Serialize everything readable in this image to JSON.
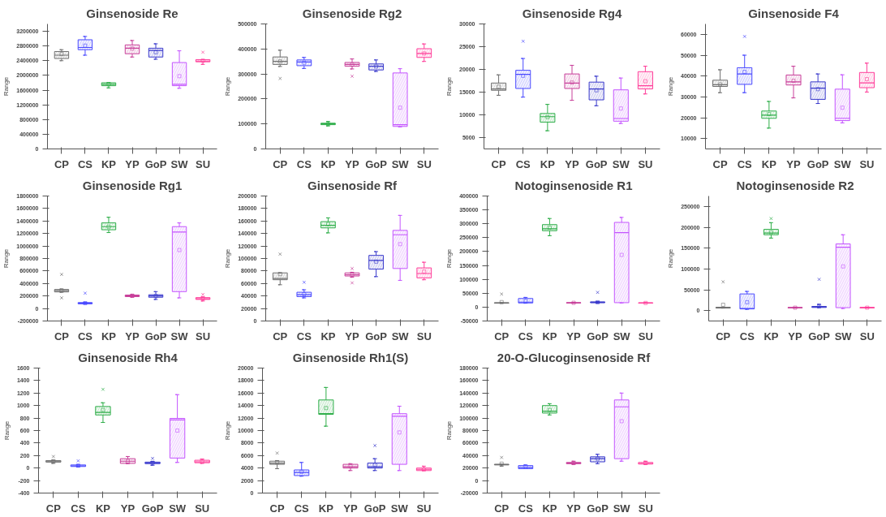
{
  "chart_data": [
    {
      "type": "box",
      "title": "Ginsenoside Re",
      "ylabel": "Range",
      "categories": [
        "CP",
        "CS",
        "KP",
        "YP",
        "GoP",
        "SW",
        "SU"
      ],
      "colors": [
        "#707070",
        "#4a4aff",
        "#2fae4a",
        "#c8409a",
        "#3a3acc",
        "#c455ff",
        "#ff3f9a"
      ],
      "ylim": [
        0,
        3400000
      ],
      "yticks": [
        0,
        400000,
        800000,
        1200000,
        1600000,
        2000000,
        2400000,
        2800000,
        3200000
      ],
      "boxes": [
        {
          "low": 2400000,
          "q1": 2460000,
          "median": 2550000,
          "q3": 2650000,
          "high": 2700000,
          "mean": 2580000
        },
        {
          "low": 2550000,
          "q1": 2700000,
          "median": 2760000,
          "q3": 2970000,
          "high": 3060000,
          "mean": 2810000
        },
        {
          "low": 1660000,
          "q1": 1720000,
          "median": 1760000,
          "q3": 1800000,
          "high": 1810000,
          "mean": 1760000
        },
        {
          "low": 2500000,
          "q1": 2590000,
          "median": 2740000,
          "q3": 2830000,
          "high": 2950000,
          "mean": 2730000
        },
        {
          "low": 2440000,
          "q1": 2500000,
          "median": 2680000,
          "q3": 2740000,
          "high": 2860000,
          "mean": 2630000
        },
        {
          "low": 1650000,
          "q1": 1720000,
          "median": 1760000,
          "q3": 2350000,
          "high": 2670000,
          "mean": 1980000
        },
        {
          "low": 2300000,
          "q1": 2370000,
          "median": 2390000,
          "q3": 2430000,
          "high": 2430000,
          "mean": 2400000,
          "outliers": [
            2630000
          ]
        }
      ]
    },
    {
      "type": "box",
      "title": "Ginsenoside Rg2",
      "ylabel": "Range",
      "categories": [
        "CP",
        "CS",
        "KP",
        "YP",
        "GoP",
        "SW",
        "SU"
      ],
      "colors": [
        "#707070",
        "#4a4aff",
        "#2fae4a",
        "#c8409a",
        "#3a3acc",
        "#c455ff",
        "#ff3f9a"
      ],
      "ylim": [
        0,
        500000
      ],
      "yticks": [
        0,
        100000,
        200000,
        300000,
        400000,
        500000
      ],
      "boxes": [
        {
          "low": 330000,
          "q1": 338000,
          "median": 350000,
          "q3": 368000,
          "high": 395000,
          "mean": 350000,
          "outliers": [
            282000
          ]
        },
        {
          "low": 322000,
          "q1": 333000,
          "median": 348000,
          "q3": 356000,
          "high": 366000,
          "mean": 345000
        },
        {
          "low": 92000,
          "q1": 97000,
          "median": 100000,
          "q3": 103000,
          "high": 110000,
          "mean": 100000
        },
        {
          "low": 320000,
          "q1": 331000,
          "median": 338000,
          "q3": 346000,
          "high": 360000,
          "mean": 337000,
          "outliers": [
            291000
          ]
        },
        {
          "low": 310000,
          "q1": 316000,
          "median": 331000,
          "q3": 340000,
          "high": 356000,
          "mean": 330000
        },
        {
          "low": 88000,
          "q1": 90000,
          "median": 97000,
          "q3": 304000,
          "high": 321000,
          "mean": 165000
        },
        {
          "low": 350000,
          "q1": 366000,
          "median": 382000,
          "q3": 401000,
          "high": 420000,
          "mean": 382000
        }
      ]
    },
    {
      "type": "box",
      "title": "Ginsenoside Rg4",
      "ylabel": "Range",
      "categories": [
        "CP",
        "CS",
        "KP",
        "YP",
        "GoP",
        "SW",
        "SU"
      ],
      "colors": [
        "#707070",
        "#4a4aff",
        "#2fae4a",
        "#c8409a",
        "#3a3acc",
        "#c455ff",
        "#ff3f9a"
      ],
      "ylim": [
        2500,
        30000
      ],
      "yticks": [
        5000,
        10000,
        15000,
        20000,
        25000,
        30000
      ],
      "boxes": [
        {
          "low": 14300,
          "q1": 15400,
          "median": 15700,
          "q3": 17000,
          "high": 18800,
          "mean": 16200
        },
        {
          "low": 13900,
          "q1": 15800,
          "median": 18900,
          "q3": 19800,
          "high": 22400,
          "mean": 18600,
          "outliers": [
            26200
          ]
        },
        {
          "low": 6500,
          "q1": 8400,
          "median": 9600,
          "q3": 10300,
          "high": 12300,
          "mean": 9500
        },
        {
          "low": 13200,
          "q1": 15800,
          "median": 17000,
          "q3": 19000,
          "high": 20900,
          "mean": 17100
        },
        {
          "low": 12000,
          "q1": 13300,
          "median": 15700,
          "q3": 17200,
          "high": 18500,
          "mean": 15400
        },
        {
          "low": 8100,
          "q1": 8600,
          "median": 9200,
          "q3": 15500,
          "high": 18100,
          "mean": 11400
        },
        {
          "low": 14600,
          "q1": 15700,
          "median": 16400,
          "q3": 19500,
          "high": 20700,
          "mean": 17400
        }
      ]
    },
    {
      "type": "box",
      "title": "Ginsenoside F4",
      "ylabel": "Range",
      "categories": [
        "CP",
        "CS",
        "KP",
        "YP",
        "GoP",
        "SW",
        "SU"
      ],
      "colors": [
        "#707070",
        "#4a4aff",
        "#2fae4a",
        "#c8409a",
        "#3a3acc",
        "#c455ff",
        "#ff3f9a"
      ],
      "ylim": [
        5000,
        65000
      ],
      "yticks": [
        10000,
        20000,
        30000,
        40000,
        50000,
        60000
      ],
      "boxes": [
        {
          "low": 32000,
          "q1": 35000,
          "median": 35800,
          "q3": 38000,
          "high": 43000,
          "mean": 36000
        },
        {
          "low": 32000,
          "q1": 36000,
          "median": 41000,
          "q3": 44000,
          "high": 50000,
          "mean": 42000,
          "outliers": [
            59000
          ]
        },
        {
          "low": 15000,
          "q1": 19700,
          "median": 21200,
          "q3": 23200,
          "high": 27800,
          "mean": 21700
        },
        {
          "low": 29500,
          "q1": 35700,
          "median": 37200,
          "q3": 40500,
          "high": 44700,
          "mean": 37700
        },
        {
          "low": 26800,
          "q1": 28800,
          "median": 34200,
          "q3": 37200,
          "high": 41000,
          "mean": 33700
        },
        {
          "low": 17500,
          "q1": 18600,
          "median": 19700,
          "q3": 33700,
          "high": 40600,
          "mean": 24800
        },
        {
          "low": 32300,
          "q1": 34400,
          "median": 36700,
          "q3": 41700,
          "high": 46200,
          "mean": 38500
        }
      ]
    },
    {
      "type": "box",
      "title": "Ginsenoside Rg1",
      "ylabel": "Range",
      "categories": [
        "CP",
        "CS",
        "KP",
        "YP",
        "GoP",
        "SW",
        "SU"
      ],
      "colors": [
        "#707070",
        "#4a4aff",
        "#2fae4a",
        "#c8409a",
        "#3a3acc",
        "#c455ff",
        "#ff3f9a"
      ],
      "ylim": [
        -200000,
        1800000
      ],
      "yticks": [
        -200000,
        0,
        200000,
        400000,
        600000,
        800000,
        1000000,
        1200000,
        1400000,
        1600000,
        1800000
      ],
      "boxes": [
        {
          "low": 260000,
          "q1": 265000,
          "median": 285000,
          "q3": 305000,
          "high": 310000,
          "mean": 290000,
          "outliers": [
            170000,
            545000
          ]
        },
        {
          "low": 75000,
          "q1": 75000,
          "median": 85000,
          "q3": 95000,
          "high": 100000,
          "mean": 85000,
          "outliers": [
            245000
          ]
        },
        {
          "low": 1215000,
          "q1": 1260000,
          "median": 1310000,
          "q3": 1370000,
          "high": 1460000,
          "mean": 1310000
        },
        {
          "low": 180000,
          "q1": 190000,
          "median": 205000,
          "q3": 215000,
          "high": 225000,
          "mean": 205000
        },
        {
          "low": 145000,
          "q1": 180000,
          "median": 200000,
          "q3": 220000,
          "high": 270000,
          "mean": 200000
        },
        {
          "low": 170000,
          "q1": 270000,
          "median": 1225000,
          "q3": 1310000,
          "high": 1370000,
          "mean": 935000
        },
        {
          "low": 120000,
          "q1": 145000,
          "median": 155000,
          "q3": 175000,
          "high": 185000,
          "mean": 160000,
          "outliers": [
            225000
          ]
        }
      ]
    },
    {
      "type": "box",
      "title": "Ginsenoside Rf",
      "ylabel": "Range",
      "categories": [
        "CP",
        "CS",
        "KP",
        "YP",
        "GoP",
        "SW",
        "SU"
      ],
      "colors": [
        "#707070",
        "#4a4aff",
        "#2fae4a",
        "#c8409a",
        "#3a3acc",
        "#c455ff",
        "#ff3f9a"
      ],
      "ylim": [
        0,
        200000
      ],
      "yticks": [
        0,
        20000,
        40000,
        60000,
        80000,
        100000,
        120000,
        140000,
        160000,
        180000,
        200000
      ],
      "boxes": [
        {
          "low": 58000,
          "q1": 66000,
          "median": 68000,
          "q3": 77000,
          "high": 77000,
          "mean": 75000,
          "outliers": [
            107000
          ]
        },
        {
          "low": 37000,
          "q1": 39000,
          "median": 42000,
          "q3": 46000,
          "high": 50000,
          "mean": 43000,
          "outliers": [
            62000
          ]
        },
        {
          "low": 141000,
          "q1": 149000,
          "median": 153000,
          "q3": 159000,
          "high": 165000,
          "mean": 155000
        },
        {
          "low": 70000,
          "q1": 72000,
          "median": 74000,
          "q3": 77000,
          "high": 78000,
          "mean": 74000,
          "outliers": [
            61000,
            84000
          ]
        },
        {
          "low": 71000,
          "q1": 83000,
          "median": 97000,
          "q3": 105000,
          "high": 111000,
          "mean": 95000
        },
        {
          "low": 65000,
          "q1": 84000,
          "median": 138000,
          "q3": 145000,
          "high": 169000,
          "mean": 123000
        },
        {
          "low": 66000,
          "q1": 69000,
          "median": 76000,
          "q3": 85000,
          "high": 94000,
          "mean": 79000
        }
      ]
    },
    {
      "type": "box",
      "title": "Notoginsenoside R1",
      "ylabel": "Range",
      "categories": [
        "CP",
        "CS",
        "KP",
        "YP",
        "GoP",
        "SW",
        "SU"
      ],
      "colors": [
        "#707070",
        "#4a4aff",
        "#2fae4a",
        "#c8409a",
        "#3a3acc",
        "#c455ff",
        "#ff3f9a"
      ],
      "ylim": [
        -50000,
        400000
      ],
      "yticks": [
        -50000,
        0,
        50000,
        100000,
        150000,
        200000,
        250000,
        300000,
        350000,
        400000
      ],
      "boxes": [
        {
          "low": 14000,
          "q1": 14000,
          "median": 15000,
          "q3": 16000,
          "high": 16000,
          "mean": 18000,
          "outliers": [
            47000
          ]
        },
        {
          "low": 14000,
          "q1": 15000,
          "median": 18000,
          "q3": 31000,
          "high": 35000,
          "mean": 22000
        },
        {
          "low": 257000,
          "q1": 275000,
          "median": 282000,
          "q3": 297000,
          "high": 319000,
          "mean": 286000
        },
        {
          "low": 14000,
          "q1": 15000,
          "median": 15500,
          "q3": 16000,
          "high": 17000,
          "mean": 15500
        },
        {
          "low": 15000,
          "q1": 16000,
          "median": 17000,
          "q3": 19000,
          "high": 20000,
          "mean": 17500,
          "outliers": [
            53000
          ]
        },
        {
          "low": 15000,
          "q1": 16000,
          "median": 268000,
          "q3": 305000,
          "high": 323000,
          "mean": 188000
        },
        {
          "low": 14000,
          "q1": 14500,
          "median": 15000,
          "q3": 15500,
          "high": 16000,
          "mean": 15000
        }
      ]
    },
    {
      "type": "box",
      "title": "Notoginsenoside R2",
      "ylabel": "Range",
      "categories": [
        "CP",
        "CS",
        "KP",
        "YP",
        "GoP",
        "SW",
        "SU"
      ],
      "colors": [
        "#707070",
        "#4a4aff",
        "#2fae4a",
        "#c8409a",
        "#3a3acc",
        "#c455ff",
        "#ff3f9a"
      ],
      "ylim": [
        -25000,
        275000
      ],
      "yticks": [
        0,
        50000,
        100000,
        150000,
        200000,
        250000
      ],
      "boxes": [
        {
          "low": 6000,
          "q1": 6000,
          "median": 7000,
          "q3": 8000,
          "high": 8000,
          "mean": 14000,
          "outliers": [
            69000
          ]
        },
        {
          "low": 3000,
          "q1": 4000,
          "median": 5000,
          "q3": 40000,
          "high": 46000,
          "mean": 20000
        },
        {
          "low": 174000,
          "q1": 182000,
          "median": 186000,
          "q3": 195000,
          "high": 211000,
          "mean": 188000,
          "outliers": [
            221000
          ]
        },
        {
          "low": 6000,
          "q1": 6500,
          "median": 7000,
          "q3": 7500,
          "high": 8000,
          "mean": 7000
        },
        {
          "low": 7000,
          "q1": 7500,
          "median": 9000,
          "q3": 10000,
          "high": 15000,
          "mean": 11000,
          "outliers": [
            75000
          ]
        },
        {
          "low": 5000,
          "q1": 7000,
          "median": 152000,
          "q3": 160000,
          "high": 182000,
          "mean": 106000
        },
        {
          "low": 6000,
          "q1": 6500,
          "median": 7000,
          "q3": 7500,
          "high": 8000,
          "mean": 7000
        }
      ]
    },
    {
      "type": "box",
      "title": "Ginsenoside Rh4",
      "ylabel": "Range",
      "categories": [
        "CP",
        "CS",
        "KP",
        "YP",
        "GoP",
        "SW",
        "SU"
      ],
      "colors": [
        "#707070",
        "#4a4aff",
        "#2fae4a",
        "#c8409a",
        "#3a3acc",
        "#c455ff",
        "#ff3f9a"
      ],
      "ylim": [
        -400,
        1600
      ],
      "yticks": [
        -400,
        -200,
        0,
        200,
        400,
        600,
        800,
        1000,
        1200,
        1400,
        1600
      ],
      "boxes": [
        {
          "low": 75,
          "q1": 95,
          "median": 110,
          "q3": 120,
          "high": 125,
          "mean": 110,
          "outliers": [
            185
          ]
        },
        {
          "low": 20,
          "q1": 25,
          "median": 35,
          "q3": 50,
          "high": 50,
          "mean": 40,
          "outliers": [
            115
          ]
        },
        {
          "low": 730,
          "q1": 850,
          "median": 890,
          "q3": 985,
          "high": 1045,
          "mean": 930,
          "outliers": [
            1260
          ]
        },
        {
          "low": 70,
          "q1": 75,
          "median": 110,
          "q3": 150,
          "high": 185,
          "mean": 110
        },
        {
          "low": 45,
          "q1": 70,
          "median": 85,
          "q3": 95,
          "high": 105,
          "mean": 85,
          "outliers": [
            155
          ]
        },
        {
          "low": 90,
          "q1": 160,
          "median": 770,
          "q3": 795,
          "high": 1175,
          "mean": 600
        },
        {
          "low": 75,
          "q1": 85,
          "median": 100,
          "q3": 125,
          "high": 145,
          "mean": 105
        }
      ]
    },
    {
      "type": "box",
      "title": "Ginsenoside Rh1(S)",
      "ylabel": "Range",
      "categories": [
        "CP",
        "CS",
        "KP",
        "YP",
        "GoP",
        "SW",
        "SU"
      ],
      "colors": [
        "#707070",
        "#4a4aff",
        "#2fae4a",
        "#c8409a",
        "#3a3acc",
        "#c455ff",
        "#ff3f9a"
      ],
      "ylim": [
        0,
        20000
      ],
      "yticks": [
        0,
        2000,
        4000,
        6000,
        8000,
        10000,
        12000,
        14000,
        16000,
        18000,
        20000
      ],
      "boxes": [
        {
          "low": 3900,
          "q1": 4600,
          "median": 4800,
          "q3": 5100,
          "high": 5200,
          "mean": 4900,
          "outliers": [
            6400
          ]
        },
        {
          "low": 2700,
          "q1": 2800,
          "median": 3300,
          "q3": 3700,
          "high": 4900,
          "mean": 3400
        },
        {
          "low": 10700,
          "q1": 12600,
          "median": 12700,
          "q3": 14900,
          "high": 16900,
          "mean": 13600
        },
        {
          "low": 3600,
          "q1": 4000,
          "median": 4200,
          "q3": 4600,
          "high": 4700,
          "mean": 4300
        },
        {
          "low": 3600,
          "q1": 4000,
          "median": 4200,
          "q3": 4800,
          "high": 5500,
          "mean": 4500,
          "outliers": [
            7600
          ]
        },
        {
          "low": 3600,
          "q1": 4600,
          "median": 12300,
          "q3": 12700,
          "high": 13900,
          "mean": 9700
        },
        {
          "low": 3600,
          "q1": 3600,
          "median": 3800,
          "q3": 4000,
          "high": 4300,
          "mean": 3800
        }
      ]
    },
    {
      "type": "box",
      "title": "20-O-Glucoginsenoside Rf",
      "ylabel": "Range",
      "categories": [
        "CP",
        "CS",
        "KP",
        "YP",
        "GoP",
        "SW",
        "SU"
      ],
      "colors": [
        "#707070",
        "#4a4aff",
        "#2fae4a",
        "#c8409a",
        "#3a3acc",
        "#c455ff",
        "#ff3f9a"
      ],
      "ylim": [
        -20000,
        180000
      ],
      "yticks": [
        -20000,
        0,
        20000,
        40000,
        60000,
        80000,
        100000,
        120000,
        140000,
        160000,
        180000
      ],
      "boxes": [
        {
          "low": 23000,
          "q1": 25000,
          "median": 25500,
          "q3": 26000,
          "high": 26000,
          "mean": 27000,
          "outliers": [
            37000
          ]
        },
        {
          "low": 19000,
          "q1": 19000,
          "median": 21000,
          "q3": 24000,
          "high": 25000,
          "mean": 22000
        },
        {
          "low": 105000,
          "q1": 108000,
          "median": 111000,
          "q3": 120000,
          "high": 123000,
          "mean": 113000
        },
        {
          "low": 26000,
          "q1": 27000,
          "median": 28000,
          "q3": 29000,
          "high": 31000,
          "mean": 28000
        },
        {
          "low": 27000,
          "q1": 30000,
          "median": 35000,
          "q3": 38000,
          "high": 42000,
          "mean": 35000
        },
        {
          "low": 31000,
          "q1": 35000,
          "median": 118000,
          "q3": 129000,
          "high": 140000,
          "mean": 95000
        },
        {
          "low": 26000,
          "q1": 26500,
          "median": 27000,
          "q3": 29000,
          "high": 31000,
          "mean": 28000
        }
      ]
    }
  ]
}
